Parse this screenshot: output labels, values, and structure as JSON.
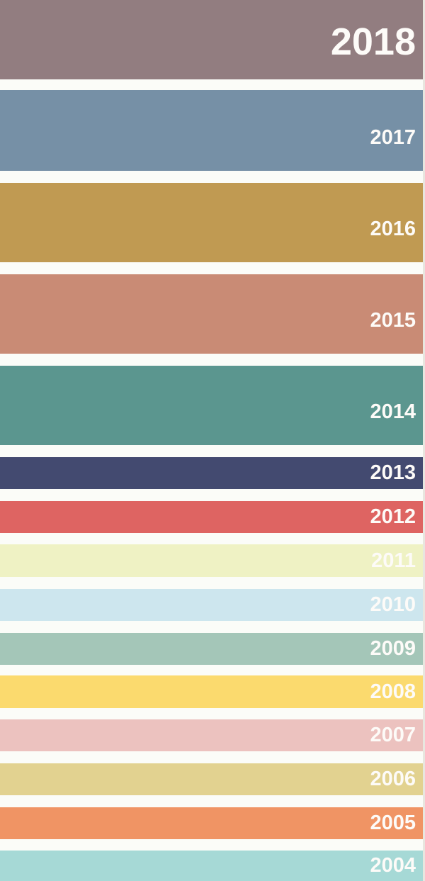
{
  "bands": [
    {
      "year": "2018",
      "color": "#927d80"
    },
    {
      "year": "2017",
      "color": "#7690a6"
    },
    {
      "year": "2016",
      "color": "#c09a52"
    },
    {
      "year": "2015",
      "color": "#c98b75"
    },
    {
      "year": "2014",
      "color": "#5b968f"
    },
    {
      "year": "2013",
      "color": "#434a70"
    },
    {
      "year": "2012",
      "color": "#de6462"
    },
    {
      "year": "2011",
      "color": "#eff2c4"
    },
    {
      "year": "2010",
      "color": "#cde6ee"
    },
    {
      "year": "2009",
      "color": "#a4c6b8"
    },
    {
      "year": "2008",
      "color": "#fbda6e"
    },
    {
      "year": "2007",
      "color": "#ecc2bf"
    },
    {
      "year": "2006",
      "color": "#e2d290"
    },
    {
      "year": "2005",
      "color": "#f09464"
    },
    {
      "year": "2004",
      "color": "#a6d9d6"
    }
  ]
}
